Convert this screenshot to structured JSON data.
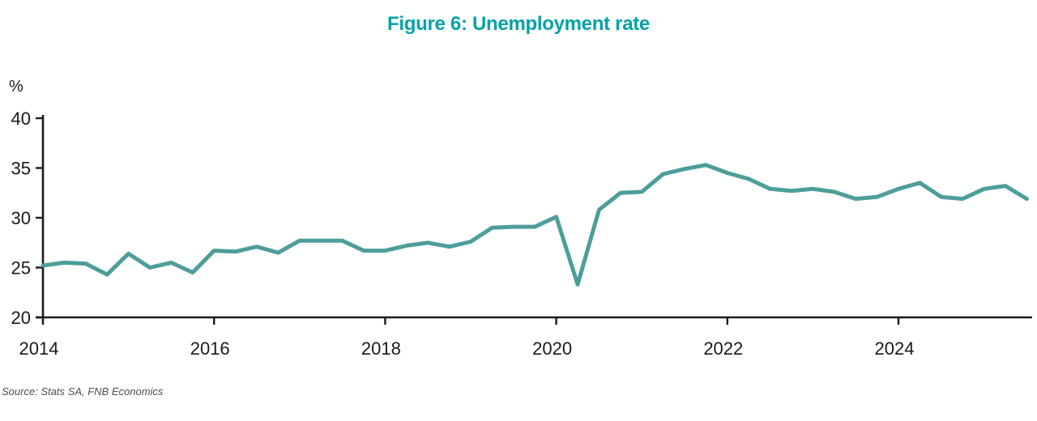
{
  "chart_data": {
    "type": "line",
    "title": "Figure 6: Unemployment rate",
    "ylabel": "%",
    "xlabel": "",
    "source": "Source: Stats SA, FNB Economics",
    "ylim": [
      20,
      40
    ],
    "y_ticks": [
      40,
      35,
      30,
      25,
      20
    ],
    "x_ticks": [
      2014,
      2016,
      2018,
      2020,
      2022,
      2024
    ],
    "frequency": "quarterly",
    "grid": false,
    "legend": "none",
    "series": [
      {
        "name": "Unemployment rate (%)",
        "quarters": [
          "2014Q1",
          "2014Q2",
          "2014Q3",
          "2014Q4",
          "2015Q1",
          "2015Q2",
          "2015Q3",
          "2015Q4",
          "2016Q1",
          "2016Q2",
          "2016Q3",
          "2016Q4",
          "2017Q1",
          "2017Q2",
          "2017Q3",
          "2017Q4",
          "2018Q1",
          "2018Q2",
          "2018Q3",
          "2018Q4",
          "2019Q1",
          "2019Q2",
          "2019Q3",
          "2019Q4",
          "2020Q1",
          "2020Q2",
          "2020Q3",
          "2020Q4",
          "2021Q1",
          "2021Q2",
          "2021Q3",
          "2021Q4",
          "2022Q1",
          "2022Q2",
          "2022Q3",
          "2022Q4",
          "2023Q1",
          "2023Q2",
          "2023Q3",
          "2023Q4",
          "2024Q1",
          "2024Q2",
          "2024Q3",
          "2024Q4",
          "2025Q1",
          "2025Q2",
          "2025Q3"
        ],
        "values": [
          25.2,
          25.5,
          25.4,
          24.3,
          26.4,
          25.0,
          25.5,
          24.5,
          26.7,
          26.6,
          27.1,
          26.5,
          27.7,
          27.7,
          27.7,
          26.7,
          26.7,
          27.2,
          27.5,
          27.1,
          27.6,
          29.0,
          29.1,
          29.1,
          30.1,
          23.3,
          30.8,
          32.5,
          32.6,
          34.4,
          34.9,
          35.3,
          34.5,
          33.9,
          32.9,
          32.7,
          32.9,
          32.6,
          31.9,
          32.1,
          32.9,
          33.5,
          32.1,
          31.9,
          32.9,
          33.2,
          31.9
        ]
      }
    ],
    "colors": {
      "line": "#4D9E9A",
      "title": "#00A2A8",
      "axis": "#1A1A1A",
      "source": "#4D4D4D",
      "background": "#FFFFFF"
    }
  }
}
